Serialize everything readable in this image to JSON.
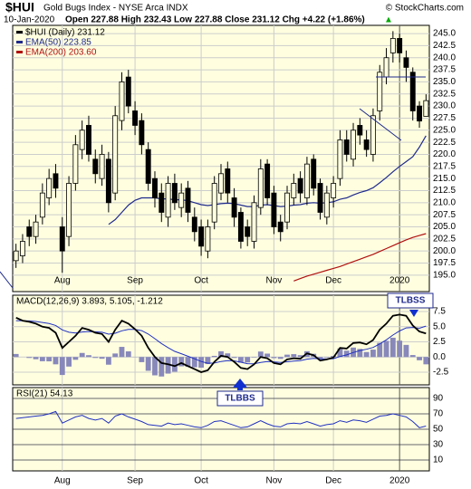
{
  "header": {
    "symbol": "$HUI",
    "name": "Gold Bugs Index - NYSE Arca INDX",
    "copyright": "© StockCharts.com",
    "date": "10-Jan-2020",
    "quote": "Open 227.88 High 232.43 Low 227.88 Close 231.12 Chg +4.22 (+1.86%)"
  },
  "chart_data": [
    {
      "type": "candlestick",
      "categories": [
        null,
        null,
        null,
        null,
        null,
        null,
        null,
        "Aug",
        null,
        null,
        null,
        null,
        null,
        null,
        null,
        null,
        null,
        null,
        "Sep",
        null,
        null,
        null,
        null,
        null,
        null,
        null,
        null,
        null,
        "Oct",
        null,
        null,
        null,
        null,
        null,
        null,
        null,
        null,
        null,
        null,
        "Nov",
        null,
        null,
        null,
        null,
        null,
        null,
        null,
        null,
        "Dec",
        null,
        null,
        null,
        null,
        null,
        null,
        null,
        null,
        null,
        "2020",
        null,
        null,
        null,
        null
      ],
      "candles": {
        "name": "$HUI (Daily) 231.12",
        "color": "#000000",
        "open": [
          198,
          199,
          205,
          203,
          207,
          211,
          216,
          205,
          203,
          214,
          221,
          226,
          219,
          215,
          219,
          212,
          227,
          236,
          229,
          227,
          221,
          215,
          212,
          207,
          214,
          209,
          213,
          207,
          205,
          200,
          206,
          212,
          217,
          211,
          208,
          205,
          202,
          209,
          218,
          212,
          206,
          206,
          211,
          215,
          211,
          219,
          214,
          207,
          211,
          215,
          223,
          219,
          226,
          223,
          220,
          229,
          236,
          241,
          244,
          240,
          237,
          230,
          227.88
        ],
        "high": [
          201.5,
          203.5,
          206.5,
          207.5,
          214,
          217,
          218,
          207,
          215.5,
          224,
          227,
          228,
          221,
          222,
          220.5,
          230,
          237,
          237.5,
          231,
          228.5,
          222.5,
          216.5,
          214,
          215.5,
          216,
          214,
          214.5,
          209,
          206.5,
          206.5,
          215.5,
          218,
          218.5,
          213,
          209,
          206.5,
          211.5,
          219,
          219,
          213.5,
          207.5,
          213.5,
          216,
          216.5,
          219.5,
          220,
          215,
          213.5,
          215.5,
          225,
          225,
          226.5,
          227.5,
          225,
          229.5,
          238.5,
          242,
          245.5,
          245,
          241.5,
          238,
          231,
          232.43
        ],
        "low": [
          196.5,
          197.5,
          201,
          201.5,
          205.5,
          209.5,
          211,
          195.5,
          201,
          212.5,
          219,
          218.5,
          214,
          213.5,
          208,
          210.5,
          225,
          228.5,
          224,
          220,
          212.5,
          209,
          206,
          205,
          208.5,
          207,
          206,
          202,
          199,
          198.5,
          204.5,
          210.5,
          210,
          205,
          200.5,
          201,
          200.5,
          207.5,
          209.5,
          203.5,
          202,
          204.5,
          209.5,
          210,
          209.5,
          211.5,
          206.5,
          205.5,
          209,
          213.5,
          218.5,
          217.5,
          222,
          219.5,
          218.5,
          227,
          234.5,
          239,
          239,
          235,
          227,
          225.5,
          227.88
        ],
        "close": [
          200,
          202,
          203,
          206,
          212,
          215,
          213,
          200,
          214,
          222,
          225,
          220,
          216,
          220,
          210,
          228,
          235,
          230,
          226,
          222,
          214,
          211,
          208,
          214,
          210,
          212,
          208,
          204,
          201,
          205,
          214,
          216,
          212,
          207,
          202,
          203,
          210,
          217,
          211,
          205,
          204,
          212,
          214,
          212,
          218,
          213,
          208,
          212,
          214,
          223,
          220,
          225,
          224,
          221,
          228,
          237,
          240,
          244,
          241,
          238,
          229,
          226.9,
          231.12
        ]
      },
      "series": [
        {
          "name": "EMA(50) 223.85",
          "color": "#1f2a8c",
          "values": [
            null,
            null,
            null,
            null,
            null,
            null,
            null,
            null,
            null,
            null,
            null,
            null,
            null,
            null,
            205.5,
            206.5,
            208,
            209.5,
            210.5,
            211,
            211,
            211,
            210.8,
            210.8,
            210.6,
            210.6,
            210.4,
            210,
            209.6,
            209.4,
            209.6,
            209.8,
            209.9,
            209.8,
            209.5,
            209.2,
            209.2,
            209.5,
            209.6,
            209.4,
            209.2,
            209.3,
            209.5,
            209.6,
            209.9,
            210,
            209.9,
            210,
            210.2,
            210.7,
            211,
            211.6,
            212.1,
            212.5,
            213.1,
            214.1,
            215.2,
            216.4,
            217.5,
            218.5,
            219.5,
            221.5,
            223.85
          ]
        },
        {
          "name": "EMA(200) 203.60",
          "color": "#b01010",
          "values": [
            null,
            null,
            null,
            null,
            null,
            null,
            null,
            null,
            null,
            null,
            null,
            null,
            null,
            null,
            null,
            null,
            null,
            null,
            null,
            null,
            null,
            null,
            null,
            null,
            null,
            null,
            null,
            null,
            null,
            null,
            null,
            null,
            null,
            null,
            null,
            null,
            null,
            null,
            null,
            null,
            null,
            null,
            193.8,
            194.3,
            194.8,
            195.2,
            195.6,
            196,
            196.4,
            196.8,
            197.3,
            197.8,
            198.3,
            198.8,
            199.3,
            199.9,
            200.5,
            201.1,
            201.7,
            202.3,
            202.8,
            203.2,
            203.6
          ]
        }
      ],
      "ylim": [
        191.6,
        246.7
      ],
      "yticks": [
        {
          "value": 195,
          "label": "195.0"
        },
        {
          "value": 197.5,
          "label": "197.5"
        },
        {
          "value": 200,
          "label": "200.0"
        },
        {
          "value": 202.5,
          "label": "202.5"
        },
        {
          "value": 205,
          "label": "205.0"
        },
        {
          "value": 207.5,
          "label": "207.5"
        },
        {
          "value": 210,
          "label": "210.0"
        },
        {
          "value": 212.5,
          "label": "212.5"
        },
        {
          "value": 215,
          "label": "215.0"
        },
        {
          "value": 217.5,
          "label": "217.5"
        },
        {
          "value": 220,
          "label": "220.0"
        },
        {
          "value": 222.5,
          "label": "222.5"
        },
        {
          "value": 225,
          "label": "225.0"
        },
        {
          "value": 227.5,
          "label": "227.5"
        },
        {
          "value": 230,
          "label": "230.0"
        },
        {
          "value": 232.5,
          "label": "232.5"
        },
        {
          "value": 235,
          "label": "235.0"
        },
        {
          "value": 237.5,
          "label": "237.5"
        },
        {
          "value": 240,
          "label": "240.0"
        },
        {
          "value": 242.5,
          "label": "242.5"
        },
        {
          "value": 245,
          "label": "245.0"
        }
      ],
      "grid": true
    },
    {
      "type": "macd",
      "legend": "MACD(12,26,9) 3.893, 5.105, -1.212",
      "series": [
        {
          "name": "MACD",
          "color": "#000000",
          "values": [
            6.5,
            6.0,
            5.8,
            5.5,
            5.0,
            4.8,
            4.0,
            1.5,
            2.5,
            3.5,
            4.8,
            4.5,
            4.0,
            3.8,
            2.5,
            4.5,
            6.0,
            5.5,
            4.6,
            3.5,
            1.5,
            0.0,
            -1.0,
            -1.2,
            -1.5,
            -1.0,
            -1.5,
            -2.0,
            -2.5,
            -2.2,
            -0.8,
            0.2,
            0.0,
            -0.8,
            -1.8,
            -2.0,
            -1.2,
            0.0,
            -0.2,
            -1.0,
            -1.2,
            -0.4,
            -0.2,
            -0.3,
            0.6,
            0.3,
            -0.6,
            -0.4,
            -0.1,
            1.5,
            1.4,
            2.3,
            2.4,
            2.1,
            2.8,
            4.5,
            5.5,
            6.8,
            7.0,
            6.8,
            5.2,
            4.2,
            3.893
          ]
        },
        {
          "name": "Signal",
          "color": "#2030c0",
          "values": [
            6.0,
            6.0,
            5.96,
            5.87,
            5.7,
            5.52,
            5.21,
            4.47,
            4.08,
            3.96,
            4.13,
            4.2,
            4.16,
            4.09,
            3.77,
            3.92,
            4.33,
            4.57,
            4.57,
            4.35,
            3.78,
            3.03,
            2.22,
            1.54,
            0.93,
            0.54,
            0.13,
            -0.3,
            -0.74,
            -1.03,
            -0.99,
            -0.75,
            -0.6,
            -0.64,
            -0.87,
            -1.1,
            -1.12,
            -0.9,
            -0.76,
            -0.81,
            -0.89,
            -0.79,
            -0.67,
            -0.6,
            -0.36,
            -0.23,
            -0.3,
            -0.32,
            -0.28,
            0.08,
            0.35,
            0.74,
            1.07,
            1.28,
            1.58,
            2.16,
            2.83,
            3.62,
            4.3,
            4.8,
            4.88,
            4.74,
            5.105
          ]
        },
        {
          "name": "Histogram",
          "color": "#8888bb",
          "values": [
            0.5,
            0.0,
            -0.16,
            -0.37,
            -0.7,
            -0.72,
            -1.21,
            -2.97,
            -1.58,
            -0.46,
            0.67,
            0.3,
            -0.16,
            -0.29,
            -1.27,
            0.58,
            1.67,
            0.93,
            0.03,
            -0.85,
            -2.28,
            -3.03,
            -3.22,
            -2.74,
            -2.43,
            -1.54,
            -1.63,
            -1.7,
            -1.76,
            -1.17,
            0.19,
            0.95,
            0.6,
            -0.16,
            -0.93,
            -0.9,
            -0.08,
            0.9,
            0.56,
            -0.19,
            -0.31,
            0.39,
            0.47,
            0.3,
            0.96,
            0.53,
            -0.3,
            -0.08,
            0.18,
            1.42,
            1.05,
            1.56,
            1.33,
            0.82,
            1.22,
            2.34,
            2.67,
            3.18,
            2.7,
            2.0,
            0.32,
            -0.54,
            -1.212
          ]
        }
      ],
      "ylim": [
        -4.6,
        10.2
      ],
      "yticks": [
        7.5,
        {
          "value": 5,
          "label": "5.0"
        },
        2.5,
        {
          "value": 0,
          "label": "0.0"
        },
        -2.5
      ],
      "annotations": [
        "TLBSS",
        "TLBBS"
      ],
      "grid": true
    },
    {
      "type": "rsi",
      "legend": "RSI(21) 54.13",
      "color": "#2030c0",
      "values": [
        64,
        65,
        66,
        67,
        68,
        70,
        73,
        58,
        62,
        66,
        68,
        64,
        62,
        64,
        58,
        67,
        70,
        66,
        63,
        60,
        56,
        55,
        54,
        58,
        56,
        57,
        55,
        53,
        52,
        55,
        60,
        61,
        58,
        55,
        52,
        53,
        57,
        61,
        57,
        54,
        53,
        57,
        58,
        57,
        60,
        57,
        54,
        56,
        57,
        61,
        59,
        62,
        61,
        59,
        63,
        67,
        68,
        70,
        68,
        66,
        60,
        52,
        54.13
      ],
      "ylim": [
        -4.1,
        104.1
      ],
      "yticks": [
        90,
        70,
        50,
        30,
        10
      ],
      "grid": true
    }
  ]
}
